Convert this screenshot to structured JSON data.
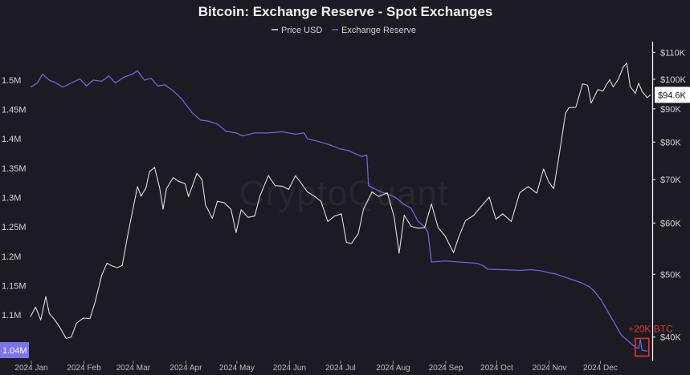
{
  "chart_data": {
    "type": "line",
    "title": "Bitcoin: Exchange Reserve - Spot Exchanges",
    "watermark": "CryptoQuant",
    "legend": {
      "placement": "top-center",
      "entries": [
        "Price USD",
        "Exchange Reserve"
      ]
    },
    "colors": {
      "background": "#1c1b24",
      "price": "#dcdcdc",
      "reserve": "#6b63d9",
      "reserve_badge": "#7c74ee",
      "annotation": "#e0322c",
      "axis": "#ffffff"
    },
    "x_ticks": [
      "2024 Jan",
      "2024 Feb",
      "2024 Mar",
      "2024 Apr",
      "2024 May",
      "2024 Jun",
      "2024 Jul",
      "2024 Aug",
      "2024 Sep",
      "2024 Oct",
      "2024 Nov",
      "2024 Dec"
    ],
    "x_domain": [
      "2024-01-01",
      "2025-01-01"
    ],
    "left_axis": {
      "label": "Exchange Reserve",
      "ylim": [
        1.025,
        1.56
      ],
      "ticks": [
        {
          "value": 1.1,
          "label": "1.1M"
        },
        {
          "value": 1.15,
          "label": "1.15M"
        },
        {
          "value": 1.2,
          "label": "1.2M"
        },
        {
          "value": 1.25,
          "label": "1.25M"
        },
        {
          "value": 1.3,
          "label": "1.3M"
        },
        {
          "value": 1.35,
          "label": "1.35M"
        },
        {
          "value": 1.4,
          "label": "1.4M"
        },
        {
          "value": 1.45,
          "label": "1.45M"
        },
        {
          "value": 1.5,
          "label": "1.5M"
        }
      ],
      "current_value": 1.04,
      "current_label": "1.04M"
    },
    "right_axis": {
      "label": "Price USD",
      "scale": "log",
      "ylim": [
        37000,
        113000
      ],
      "ticks": [
        {
          "value": 40000,
          "label": "$40K"
        },
        {
          "value": 50000,
          "label": "$50K"
        },
        {
          "value": 60000,
          "label": "$60K"
        },
        {
          "value": 70000,
          "label": "$70K"
        },
        {
          "value": 80000,
          "label": "$80K"
        },
        {
          "value": 90000,
          "label": "$90K"
        },
        {
          "value": 100000,
          "label": "$100K"
        },
        {
          "value": 110000,
          "label": "$110K"
        }
      ],
      "current_value": 94600,
      "current_label": "$94.6K"
    },
    "annotation": {
      "text": "+20K BTC",
      "x_range": [
        "2024-12-22",
        "2024-12-30"
      ],
      "y_range": [
        1.03,
        1.06
      ]
    },
    "series": [
      {
        "name": "Exchange Reserve",
        "axis": "left",
        "points": [
          [
            "2024-01-01",
            1.488
          ],
          [
            "2024-01-05",
            1.495
          ],
          [
            "2024-01-08",
            1.51
          ],
          [
            "2024-01-12",
            1.5
          ],
          [
            "2024-01-16",
            1.495
          ],
          [
            "2024-01-20",
            1.488
          ],
          [
            "2024-01-25",
            1.495
          ],
          [
            "2024-01-30",
            1.502
          ],
          [
            "2024-02-03",
            1.49
          ],
          [
            "2024-02-07",
            1.5
          ],
          [
            "2024-02-12",
            1.498
          ],
          [
            "2024-02-16",
            1.507
          ],
          [
            "2024-02-20",
            1.495
          ],
          [
            "2024-02-25",
            1.505
          ],
          [
            "2024-03-01",
            1.51
          ],
          [
            "2024-03-04",
            1.516
          ],
          [
            "2024-03-08",
            1.5
          ],
          [
            "2024-03-12",
            1.503
          ],
          [
            "2024-03-16",
            1.49
          ],
          [
            "2024-03-20",
            1.492
          ],
          [
            "2024-03-25",
            1.482
          ],
          [
            "2024-03-30",
            1.468
          ],
          [
            "2024-04-05",
            1.445
          ],
          [
            "2024-04-10",
            1.432
          ],
          [
            "2024-04-15",
            1.43
          ],
          [
            "2024-04-20",
            1.425
          ],
          [
            "2024-04-25",
            1.413
          ],
          [
            "2024-05-01",
            1.41
          ],
          [
            "2024-05-05",
            1.405
          ],
          [
            "2024-05-12",
            1.41
          ],
          [
            "2024-05-20",
            1.41
          ],
          [
            "2024-05-28",
            1.412
          ],
          [
            "2024-06-05",
            1.408
          ],
          [
            "2024-06-10",
            1.41
          ],
          [
            "2024-06-12",
            1.4
          ],
          [
            "2024-06-18",
            1.396
          ],
          [
            "2024-06-25",
            1.39
          ],
          [
            "2024-07-01",
            1.383
          ],
          [
            "2024-07-06",
            1.38
          ],
          [
            "2024-07-10",
            1.375
          ],
          [
            "2024-07-14",
            1.37
          ],
          [
            "2024-07-17",
            1.372
          ],
          [
            "2024-07-18",
            1.32
          ],
          [
            "2024-07-25",
            1.31
          ],
          [
            "2024-07-30",
            1.305
          ],
          [
            "2024-08-03",
            1.3
          ],
          [
            "2024-08-08",
            1.288
          ],
          [
            "2024-08-12",
            1.282
          ],
          [
            "2024-08-16",
            1.26
          ],
          [
            "2024-08-20",
            1.25
          ],
          [
            "2024-08-22",
            1.24
          ],
          [
            "2024-08-24",
            1.19
          ],
          [
            "2024-09-01",
            1.192
          ],
          [
            "2024-09-10",
            1.19
          ],
          [
            "2024-09-20",
            1.188
          ],
          [
            "2024-09-24",
            1.183
          ],
          [
            "2024-09-26",
            1.178
          ],
          [
            "2024-10-05",
            1.177
          ],
          [
            "2024-10-15",
            1.176
          ],
          [
            "2024-10-22",
            1.177
          ],
          [
            "2024-10-28",
            1.175
          ],
          [
            "2024-11-01",
            1.172
          ],
          [
            "2024-11-05",
            1.17
          ],
          [
            "2024-11-10",
            1.165
          ],
          [
            "2024-11-15",
            1.16
          ],
          [
            "2024-11-20",
            1.155
          ],
          [
            "2024-11-25",
            1.148
          ],
          [
            "2024-11-28",
            1.14
          ],
          [
            "2024-12-02",
            1.125
          ],
          [
            "2024-12-06",
            1.105
          ],
          [
            "2024-12-10",
            1.085
          ],
          [
            "2024-12-14",
            1.065
          ],
          [
            "2024-12-18",
            1.055
          ],
          [
            "2024-12-22",
            1.045
          ],
          [
            "2024-12-24",
            1.043
          ],
          [
            "2024-12-25",
            1.058
          ],
          [
            "2024-12-26",
            1.04
          ],
          [
            "2024-12-29",
            1.038
          ]
        ]
      },
      {
        "name": "Price USD",
        "axis": "right",
        "points": [
          [
            "2024-01-01",
            43000
          ],
          [
            "2024-01-04",
            44500
          ],
          [
            "2024-01-07",
            42500
          ],
          [
            "2024-01-10",
            46200
          ],
          [
            "2024-01-12",
            43500
          ],
          [
            "2024-01-15",
            42600
          ],
          [
            "2024-01-18",
            41500
          ],
          [
            "2024-01-22",
            39800
          ],
          [
            "2024-01-25",
            40000
          ],
          [
            "2024-01-28",
            42000
          ],
          [
            "2024-02-01",
            42800
          ],
          [
            "2024-02-05",
            42700
          ],
          [
            "2024-02-08",
            45300
          ],
          [
            "2024-02-12",
            49900
          ],
          [
            "2024-02-15",
            52000
          ],
          [
            "2024-02-18",
            51500
          ],
          [
            "2024-02-21",
            51200
          ],
          [
            "2024-02-24",
            51600
          ],
          [
            "2024-02-27",
            57000
          ],
          [
            "2024-03-01",
            62500
          ],
          [
            "2024-03-04",
            68300
          ],
          [
            "2024-03-06",
            66000
          ],
          [
            "2024-03-09",
            68000
          ],
          [
            "2024-03-11",
            72000
          ],
          [
            "2024-03-14",
            73100
          ],
          [
            "2024-03-17",
            68000
          ],
          [
            "2024-03-19",
            63000
          ],
          [
            "2024-03-21",
            67800
          ],
          [
            "2024-03-25",
            70500
          ],
          [
            "2024-03-28",
            69600
          ],
          [
            "2024-04-01",
            69000
          ],
          [
            "2024-04-03",
            65900
          ],
          [
            "2024-04-08",
            71600
          ],
          [
            "2024-04-11",
            70000
          ],
          [
            "2024-04-13",
            64000
          ],
          [
            "2024-04-17",
            61000
          ],
          [
            "2024-04-20",
            64800
          ],
          [
            "2024-04-24",
            64500
          ],
          [
            "2024-04-28",
            63000
          ],
          [
            "2024-05-01",
            58000
          ],
          [
            "2024-05-04",
            62900
          ],
          [
            "2024-05-08",
            61200
          ],
          [
            "2024-05-12",
            61500
          ],
          [
            "2024-05-15",
            66000
          ],
          [
            "2024-05-20",
            71000
          ],
          [
            "2024-05-24",
            68500
          ],
          [
            "2024-05-28",
            68400
          ],
          [
            "2024-06-01",
            67600
          ],
          [
            "2024-06-05",
            71000
          ],
          [
            "2024-06-08",
            69300
          ],
          [
            "2024-06-12",
            67000
          ],
          [
            "2024-06-16",
            66000
          ],
          [
            "2024-06-20",
            64800
          ],
          [
            "2024-06-24",
            60300
          ],
          [
            "2024-06-28",
            61500
          ],
          [
            "2024-07-02",
            62000
          ],
          [
            "2024-07-05",
            56000
          ],
          [
            "2024-07-08",
            55800
          ],
          [
            "2024-07-12",
            57800
          ],
          [
            "2024-07-15",
            63000
          ],
          [
            "2024-07-20",
            67000
          ],
          [
            "2024-07-24",
            65900
          ],
          [
            "2024-07-29",
            66800
          ],
          [
            "2024-08-02",
            61400
          ],
          [
            "2024-08-05",
            53900
          ],
          [
            "2024-08-08",
            61700
          ],
          [
            "2024-08-12",
            59300
          ],
          [
            "2024-08-16",
            58900
          ],
          [
            "2024-08-20",
            59000
          ],
          [
            "2024-08-24",
            64200
          ],
          [
            "2024-08-28",
            59000
          ],
          [
            "2024-09-01",
            57300
          ],
          [
            "2024-09-06",
            54000
          ],
          [
            "2024-09-09",
            57000
          ],
          [
            "2024-09-13",
            60500
          ],
          [
            "2024-09-18",
            61700
          ],
          [
            "2024-09-22",
            63500
          ],
          [
            "2024-09-27",
            65800
          ],
          [
            "2024-10-01",
            60800
          ],
          [
            "2024-10-05",
            62000
          ],
          [
            "2024-10-10",
            60300
          ],
          [
            "2024-10-15",
            66800
          ],
          [
            "2024-10-20",
            68300
          ],
          [
            "2024-10-25",
            66700
          ],
          [
            "2024-10-29",
            72700
          ],
          [
            "2024-11-01",
            69500
          ],
          [
            "2024-11-04",
            67800
          ],
          [
            "2024-11-07",
            75800
          ],
          [
            "2024-11-11",
            88700
          ],
          [
            "2024-11-13",
            90400
          ],
          [
            "2024-11-17",
            90500
          ],
          [
            "2024-11-21",
            98400
          ],
          [
            "2024-11-24",
            97900
          ],
          [
            "2024-11-26",
            91900
          ],
          [
            "2024-11-30",
            96400
          ],
          [
            "2024-12-03",
            95900
          ],
          [
            "2024-12-05",
            98000
          ],
          [
            "2024-12-07",
            99900
          ],
          [
            "2024-12-09",
            97300
          ],
          [
            "2024-12-12",
            100000
          ],
          [
            "2024-12-15",
            104500
          ],
          [
            "2024-12-17",
            106000
          ],
          [
            "2024-12-19",
            97500
          ],
          [
            "2024-12-22",
            95100
          ],
          [
            "2024-12-24",
            98600
          ],
          [
            "2024-12-26",
            95800
          ],
          [
            "2024-12-29",
            93700
          ],
          [
            "2024-12-31",
            94600
          ]
        ]
      }
    ]
  }
}
